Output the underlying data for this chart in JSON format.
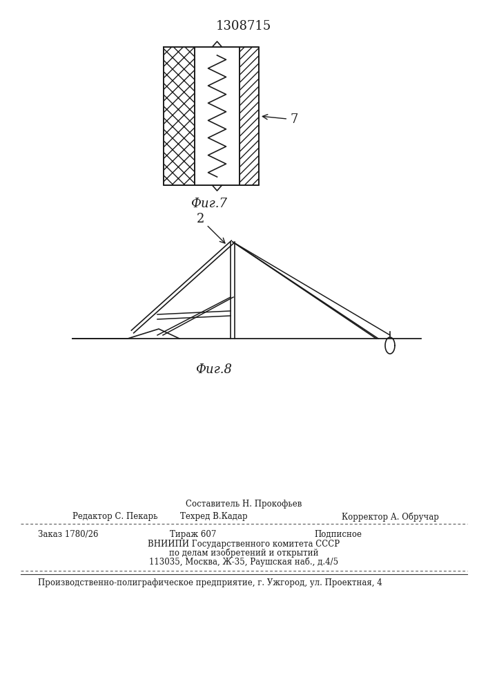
{
  "patent_number": "1308715",
  "fig7_label": "Фиг.7",
  "fig8_label": "Фиг.8",
  "label_7": "7",
  "label_2": "2",
  "bg_color": "#ffffff",
  "line_color": "#1a1a1a",
  "footer_sestavitel": "Составитель Н. Прокофьев",
  "footer_redaktor": "Редактор С. Пекарь",
  "footer_tehred": "Техред В.Кадар",
  "footer_korrektor": "Корректор А. Обручар",
  "footer_zakaz": "Заказ 1780/26",
  "footer_tirazh": "Тираж 607",
  "footer_podpisnoe": "Подписное",
  "footer_vniipи": "ВНИИПИ Государственного комитета СССР",
  "footer_podelam": "по делам изобретений и открытий",
  "footer_address": "113035, Москва, Ж-35, Раушская наб., д.4/5",
  "footer_factory": "Производственно-полиграфическое предприятие, г. Ужгород, ул. Проектная, 4"
}
